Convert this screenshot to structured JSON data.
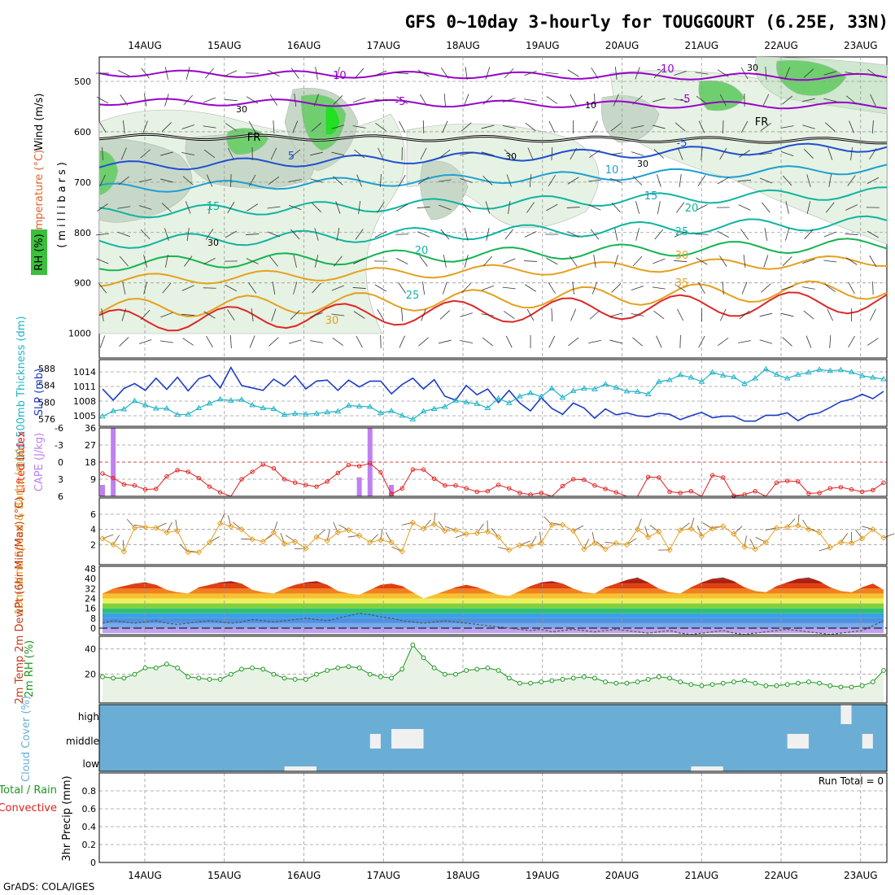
{
  "title": "GFS 0~10day 3-hourly for TOUGGOURT (6.25E, 33N)",
  "footer": "GrADS: COLA/IGES",
  "dates": [
    "14AUG",
    "15AUG",
    "16AUG",
    "17AUG",
    "18AUG",
    "19AUG",
    "20AUG",
    "21AUG",
    "22AUG",
    "23AUG"
  ],
  "colors": {
    "purple": "#9900cc",
    "blue": "#1e50d2",
    "cyan": "#1ea0d2",
    "teal": "#10b4a0",
    "green": "#14b450",
    "orange": "#e6a01e",
    "red": "#dc2828",
    "slp": "#1e3cc8",
    "thickness": "#20b4c8",
    "cape": "#c080f0",
    "lifted": "#e02020",
    "wind": "#e6a020",
    "rh2m": "#1e961e",
    "cloud": "#6aaed6"
  },
  "upper": {
    "ylabel_wind": "Wind (m/s)",
    "ylabel_temp": "Temperature (°C)",
    "ylabel_rh": "RH (%)",
    "ylabel_pres": "(millibars)",
    "yticks": [
      "500",
      "600",
      "700",
      "800",
      "900",
      "1000"
    ],
    "contour_labels": [
      {
        "text": "-10",
        "color": "purple"
      },
      {
        "text": "-10",
        "color": "purple"
      },
      {
        "text": "-5",
        "color": "purple"
      },
      {
        "text": "-5",
        "color": "purple"
      },
      {
        "text": "FR",
        "color": "black"
      },
      {
        "text": "FR",
        "color": "black"
      },
      {
        "text": "-5",
        "color": "blue"
      },
      {
        "text": "5",
        "color": "blue"
      },
      {
        "text": "10",
        "color": "cyan"
      },
      {
        "text": "15",
        "color": "cyan"
      },
      {
        "text": "15",
        "color": "teal"
      },
      {
        "text": "20",
        "color": "teal"
      },
      {
        "text": "20",
        "color": "teal"
      },
      {
        "text": "25",
        "color": "teal"
      },
      {
        "text": "25",
        "color": "teal"
      },
      {
        "text": "30",
        "color": "orange"
      },
      {
        "text": "35",
        "color": "orange"
      },
      {
        "text": "30",
        "color": "orange"
      }
    ],
    "rh_labels": [
      "30",
      "30",
      "30",
      "10",
      "30",
      "30"
    ]
  },
  "chart_data": [
    {
      "type": "line",
      "name": "slp_thickness",
      "ylabel_left": "1000-500mb Thickness (dm)",
      "ylabel_right": "SLP (mb)",
      "yticks_left": [
        "588",
        "584",
        "580",
        "576"
      ],
      "yticks_right": [
        "1014",
        "1011",
        "1008",
        "1005"
      ],
      "series": [
        {
          "name": "SLP",
          "values": [
            1010.5,
            1008.2,
            1010.6,
            1011.6,
            1010.2,
            1012.7,
            1010.4,
            1012.9,
            1010.1,
            1012.6,
            1013.3,
            1010.7,
            1014.9,
            1011.2,
            1010.7,
            1010.2,
            1012.5,
            1011.1,
            1013.2,
            1010.5,
            1012.1,
            1012.3,
            1010.2,
            1012.3,
            1010.9,
            1012.1,
            1012.1,
            1009.5,
            1011.4,
            1012.7,
            1010.5,
            1012.4,
            1009.0,
            1008.2,
            1011.2,
            1009.3,
            1010.5,
            1007.7,
            1010.2,
            1007.6,
            1006.0,
            1008.7,
            1006.5,
            1005.3,
            1007.6,
            1006.6,
            1004.5,
            1006.4,
            1005.2,
            1005.6,
            1005.0,
            1004.8,
            1005.5,
            1005.3,
            1004.2,
            1005.0,
            1005.7,
            1004.6,
            1004.9,
            1004.9,
            1003.9,
            1003.9,
            1005.1,
            1005.1,
            1005.6,
            1004.0,
            1005.2,
            1005.6,
            1006.7,
            1007.9,
            1008.4,
            1009.4,
            1008.5,
            1010.0
          ]
        },
        {
          "name": "Thickness",
          "values": [
            576.6,
            577.9,
            578.3,
            580.3,
            579.3,
            578.5,
            578.5,
            577.0,
            577.1,
            578.6,
            579.7,
            580.7,
            580.4,
            580.6,
            579.3,
            578.6,
            578.4,
            577.0,
            577.3,
            577.1,
            577.3,
            577.6,
            577.8,
            579.2,
            579.0,
            578.9,
            577.4,
            577.9,
            576.8,
            575.9,
            577.8,
            578.4,
            578.9,
            580.4,
            580.0,
            579.6,
            578.6,
            580.9,
            579.8,
            581.4,
            582.2,
            581.3,
            583.3,
            581.1,
            582.7,
            583.3,
            583.1,
            584.3,
            583.5,
            582.6,
            582.5,
            581.9,
            584.9,
            585.3,
            586.5,
            585.9,
            584.9,
            587.1,
            586.4,
            586.0,
            584.4,
            585.7,
            587.9,
            586.6,
            585.7,
            586.6,
            587.1,
            587.8,
            587.5,
            587.7,
            587.2,
            586.3,
            585.9,
            585.5
          ]
        }
      ]
    },
    {
      "type": "bar+line",
      "name": "cape_li",
      "ylabel_left": "CAPE (J/kg)",
      "ylabel_right": "Lifted Index",
      "yticks_cape": [
        "36",
        "27",
        "18",
        "9"
      ],
      "yticks_li": [
        "-6",
        "-3",
        "0",
        "3",
        "6"
      ],
      "cape_bars": [
        {
          "i": 0,
          "value": 6
        },
        {
          "i": 1,
          "value": 36
        },
        {
          "i": 24,
          "value": 10
        },
        {
          "i": 25,
          "value": 36
        },
        {
          "i": 27,
          "value": 6
        }
      ],
      "lifted_index": [
        2.0,
        2.8,
        3.9,
        4.1,
        4.8,
        4.7,
        2.5,
        1.4,
        1.7,
        2.8,
        4.3,
        5.3,
        6.2,
        3.0,
        1.7,
        0.4,
        1.1,
        3.0,
        3.6,
        4.0,
        4.3,
        3.4,
        1.9,
        0.5,
        0.7,
        0.2,
        1.8,
        5.6,
        4.6,
        1.3,
        1.3,
        2.9,
        4.1,
        4.1,
        4.6,
        5.2,
        5.1,
        4.0,
        4.6,
        5.4,
        5.7,
        5.4,
        6.0,
        4.2,
        3.0,
        3.1,
        4.1,
        4.7,
        5.3,
        6.3,
        6.5,
        2.6,
        2.7,
        5.2,
        5.4,
        5.1,
        6.2,
        2.3,
        2.7,
        5.9,
        5.7,
        5.1,
        6.0,
        3.6,
        3.3,
        3.4,
        5.5,
        5.4,
        4.6,
        4.4,
        4.8,
        5.2,
        4.9,
        3.6
      ]
    },
    {
      "type": "line",
      "name": "wind10m",
      "ylabel": "10m Wind Speed & Barbs (m/s)",
      "yticks": [
        "6",
        "4",
        "2"
      ],
      "values": [
        2.8,
        2.0,
        1.1,
        4.2,
        4.3,
        4.2,
        3.6,
        3.8,
        1.0,
        1.0,
        2.3,
        4.8,
        4.4,
        4.0,
        2.7,
        2.4,
        3.6,
        2.1,
        2.4,
        1.5,
        3.0,
        2.5,
        3.6,
        3.9,
        3.2,
        2.3,
        2.6,
        2.3,
        1.1,
        4.9,
        4.1,
        4.7,
        3.8,
        3.9,
        3.4,
        3.5,
        3.7,
        3.0,
        1.3,
        1.9,
        1.8,
        2.2,
        4.6,
        4.6,
        3.8,
        1.4,
        2.2,
        1.4,
        2.2,
        2.0,
        4.0,
        3.0,
        3.7,
        1.3,
        3.9,
        4.1,
        3.1,
        4.1,
        4.4,
        3.4,
        1.7,
        1.4,
        2.3,
        4.2,
        4.3,
        4.5,
        4.0,
        3.6,
        1.6,
        2.3,
        2.2,
        2.8,
        4.0,
        2.9
      ]
    },
    {
      "type": "area",
      "name": "temp2m",
      "ylabel": "2m Temp 2m DewPt (6hr Min/Max) (°C)",
      "yticks": [
        "48",
        "40",
        "32",
        "24",
        "16",
        "8",
        "0"
      ],
      "temp": [
        28,
        32,
        34,
        36,
        37,
        35,
        31,
        29,
        28,
        33,
        35,
        37,
        38,
        36,
        31,
        29,
        28,
        32,
        35,
        37,
        38,
        35,
        30,
        28,
        27,
        31,
        35,
        36,
        34,
        29,
        24,
        27,
        30,
        33,
        35,
        33,
        30,
        27,
        26,
        30,
        34,
        37,
        38,
        36,
        32,
        29,
        28,
        33,
        36,
        39,
        41,
        37,
        32,
        29,
        28,
        33,
        37,
        40,
        41,
        38,
        33,
        30,
        29,
        34,
        37,
        40,
        41,
        38,
        33,
        30,
        29,
        33,
        36,
        31
      ],
      "dewpoint": [
        4,
        6,
        5,
        4,
        5,
        6,
        4,
        3,
        4,
        5,
        6,
        5,
        4,
        5,
        7,
        6,
        5,
        6,
        7,
        8,
        7,
        6,
        8,
        10,
        12,
        11,
        9,
        8,
        6,
        5,
        4,
        5,
        6,
        5,
        4,
        3,
        2,
        1,
        0,
        -1,
        -2,
        -1,
        -3,
        -2,
        -1,
        -2,
        -3,
        -2,
        -1,
        -2,
        -3,
        -4,
        -3,
        -2,
        -4,
        -5,
        -4,
        -3,
        -2,
        -4,
        -5,
        -4,
        -3,
        -2,
        -1,
        -2,
        -3,
        -4,
        -5,
        -4,
        -3,
        -2,
        2,
        6
      ]
    },
    {
      "type": "area",
      "name": "rh2m",
      "ylabel": "2m RH (%)",
      "yticks": [
        "40",
        "20"
      ],
      "values": [
        18,
        17,
        17,
        20,
        25,
        25,
        28,
        25,
        18,
        17,
        16,
        16,
        20,
        24,
        25,
        24,
        20,
        17,
        16,
        16,
        20,
        23,
        25,
        26,
        25,
        20,
        18,
        17,
        24,
        43,
        33,
        25,
        20,
        20,
        23,
        24,
        25,
        23,
        17,
        13,
        13,
        14,
        15,
        16,
        17,
        18,
        17,
        14,
        13,
        13,
        14,
        16,
        18,
        17,
        14,
        12,
        11,
        12,
        13,
        14,
        15,
        13,
        11,
        11,
        12,
        13,
        14,
        13,
        11,
        10,
        10,
        11,
        14,
        23
      ]
    },
    {
      "type": "heatmap",
      "name": "cloud_cover",
      "ylabel": "Cloud Cover (%)",
      "levels": [
        "high",
        "middle",
        "low"
      ],
      "patches": [
        {
          "level": "low",
          "from": 17,
          "to": 20,
          "value": 10
        },
        {
          "level": "middle",
          "from": 25,
          "to": 26,
          "value": 30
        },
        {
          "level": "middle",
          "from": 27,
          "to": 30,
          "value": 40
        },
        {
          "level": "low",
          "from": 55,
          "to": 58,
          "value": 10
        },
        {
          "level": "middle",
          "from": 64,
          "to": 66,
          "value": 30
        },
        {
          "level": "high",
          "from": 69,
          "to": 70,
          "value": 40
        },
        {
          "level": "middle",
          "from": 71,
          "to": 72,
          "value": 30
        }
      ]
    },
    {
      "type": "bar",
      "name": "precip",
      "ylabel": "3hr Precip (mm)",
      "legend_left": "Total / Rain",
      "legend_left2": "Convective",
      "run_total": "Run Total = 0",
      "yticks": [
        "0.8",
        "0.6",
        "0.4",
        "0.2",
        "0"
      ],
      "values": []
    }
  ]
}
